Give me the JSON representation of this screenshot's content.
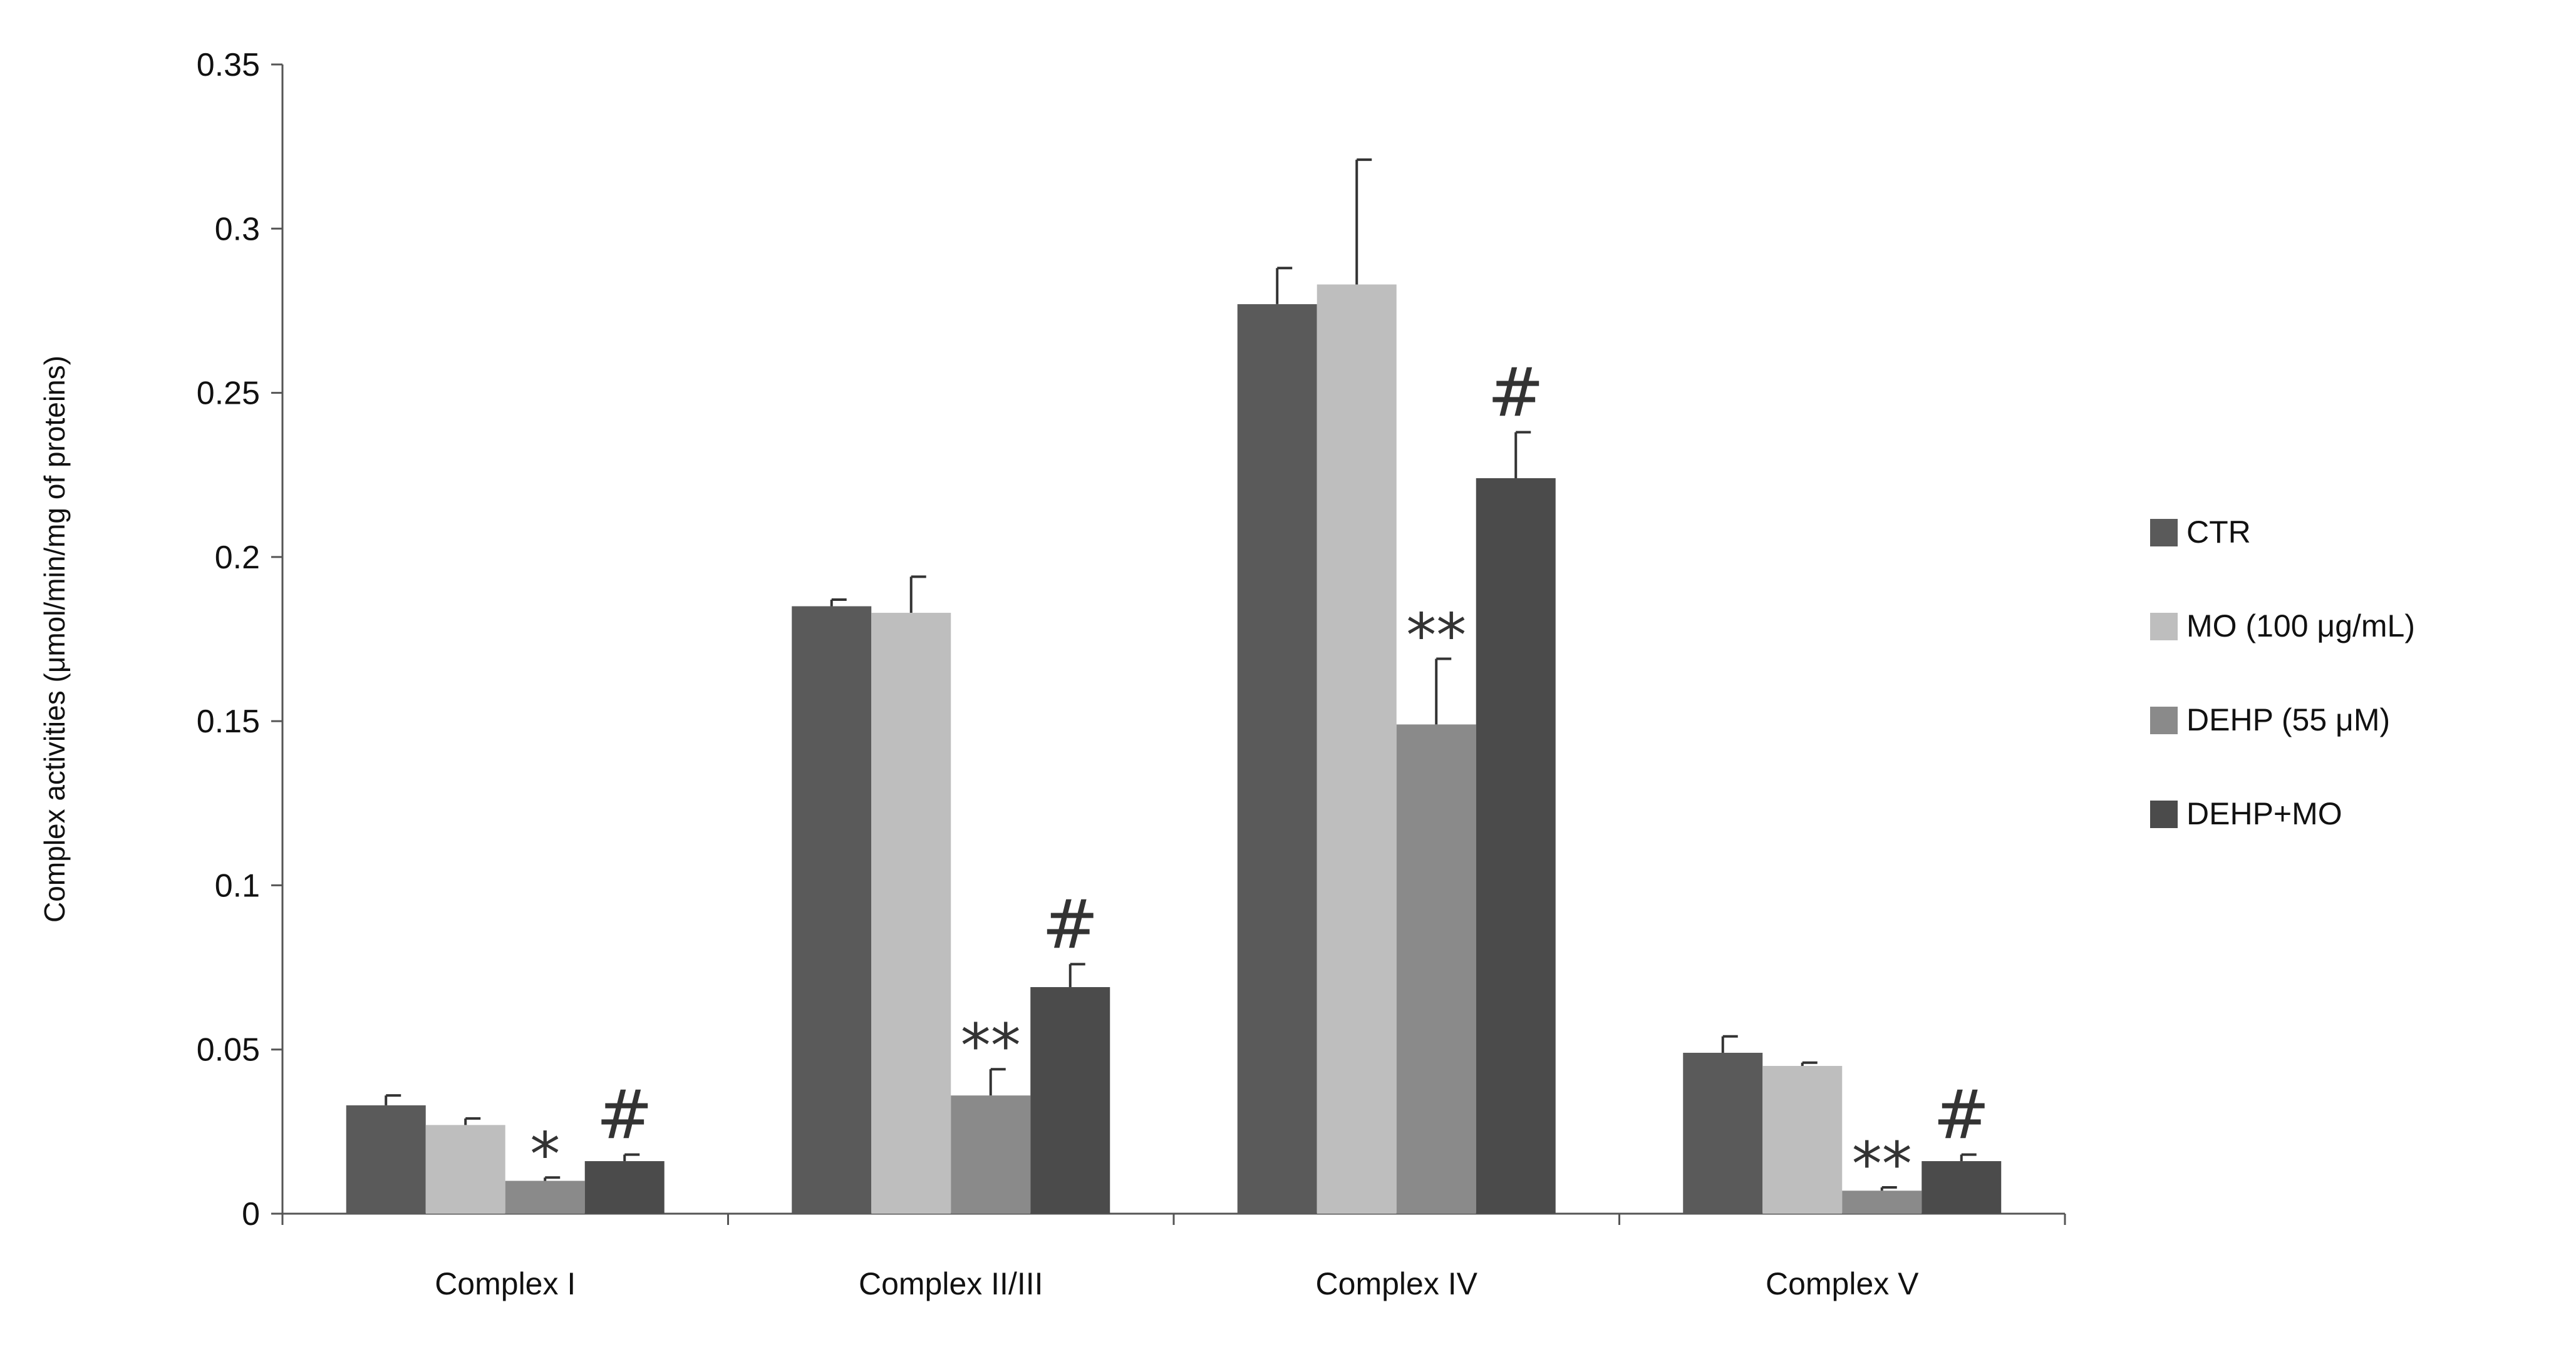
{
  "chart_data": {
    "type": "bar",
    "title": "",
    "xlabel": "",
    "ylabel": "Complex activities (μmol/min/mg of proteins)",
    "ylim": [
      0,
      0.35
    ],
    "yticks": [
      0,
      0.05,
      0.1,
      0.15,
      0.2,
      0.25,
      0.3,
      0.35
    ],
    "ytick_labels": [
      "0",
      "0.05",
      "0.1",
      "0.15",
      "0.2",
      "0.25",
      "0.3",
      "0.35"
    ],
    "grid": false,
    "legend_position": "right",
    "categories": [
      "Complex I",
      "Complex II/III",
      "Complex IV",
      "Complex V"
    ],
    "series": [
      {
        "name": "CTR",
        "color": "#5a5a5a",
        "values": [
          0.033,
          0.185,
          0.277,
          0.049
        ],
        "errors": [
          0.003,
          0.002,
          0.011,
          0.005
        ]
      },
      {
        "name": "MO (100 μg/mL)",
        "color": "#bebebe",
        "values": [
          0.027,
          0.183,
          0.283,
          0.045
        ],
        "errors": [
          0.002,
          0.011,
          0.038,
          0.001
        ]
      },
      {
        "name": "DEHP (55 μM)",
        "color": "#8a8a8a",
        "values": [
          0.01,
          0.036,
          0.149,
          0.007
        ],
        "errors": [
          0.001,
          0.008,
          0.02,
          0.001
        ]
      },
      {
        "name": "DEHP+MO",
        "color": "#4b4b4b",
        "values": [
          0.016,
          0.069,
          0.224,
          0.016
        ],
        "errors": [
          0.002,
          0.007,
          0.014,
          0.002
        ]
      }
    ],
    "annotations": [
      {
        "category": "Complex I",
        "series": "DEHP (55 μM)",
        "text": "*"
      },
      {
        "category": "Complex I",
        "series": "DEHP+MO",
        "text": "#"
      },
      {
        "category": "Complex II/III",
        "series": "DEHP (55 μM)",
        "text": "**"
      },
      {
        "category": "Complex II/III",
        "series": "DEHP+MO",
        "text": "#"
      },
      {
        "category": "Complex IV",
        "series": "DEHP (55 μM)",
        "text": "**"
      },
      {
        "category": "Complex IV",
        "series": "DEHP+MO",
        "text": "#"
      },
      {
        "category": "Complex V",
        "series": "DEHP (55 μM)",
        "text": "**"
      },
      {
        "category": "Complex V",
        "series": "DEHP+MO",
        "text": "#"
      }
    ]
  }
}
